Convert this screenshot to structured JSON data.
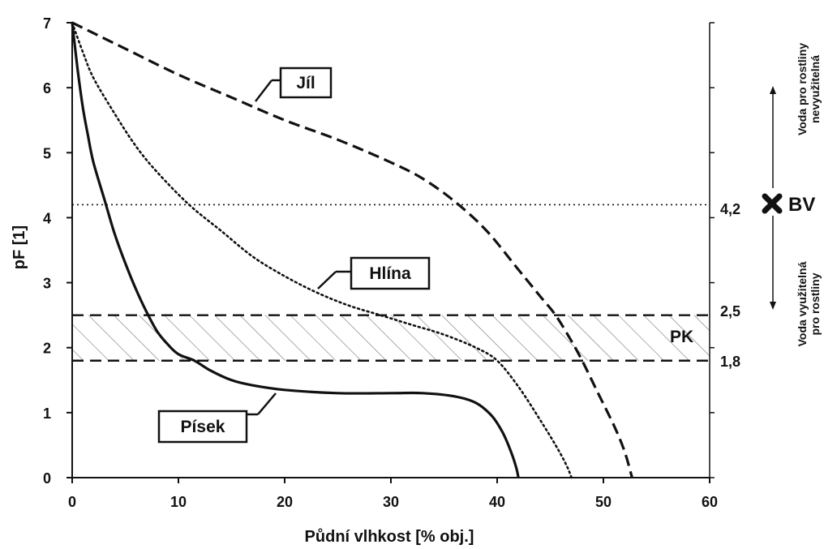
{
  "chart_data": {
    "type": "line",
    "xlabel": "Půdní vlhkost [% obj.]",
    "ylabel": "pF [1]",
    "xlim": [
      0,
      60
    ],
    "ylim": [
      0,
      7
    ],
    "x_ticks": [
      0,
      10,
      20,
      30,
      40,
      50,
      60
    ],
    "y_ticks": [
      0,
      1,
      2,
      3,
      4,
      5,
      6,
      7
    ],
    "grid": false,
    "series": [
      {
        "name": "Jíl",
        "style": "dashed",
        "color": "#111111",
        "points": [
          [
            0,
            7
          ],
          [
            5,
            6.6
          ],
          [
            10,
            6.2
          ],
          [
            15,
            5.85
          ],
          [
            20,
            5.5
          ],
          [
            25,
            5.2
          ],
          [
            30,
            4.85
          ],
          [
            33,
            4.6
          ],
          [
            36,
            4.25
          ],
          [
            39,
            3.8
          ],
          [
            42,
            3.2
          ],
          [
            44,
            2.8
          ],
          [
            45.5,
            2.5
          ],
          [
            47,
            2.1
          ],
          [
            48,
            1.8
          ],
          [
            49.5,
            1.3
          ],
          [
            51,
            0.8
          ],
          [
            52,
            0.4
          ],
          [
            52.7,
            0
          ]
        ]
      },
      {
        "name": "Hlína",
        "style": "dotted",
        "color": "#111111",
        "points": [
          [
            0,
            7
          ],
          [
            1,
            6.55
          ],
          [
            2,
            6.15
          ],
          [
            4,
            5.6
          ],
          [
            6,
            5.1
          ],
          [
            8,
            4.7
          ],
          [
            11,
            4.2
          ],
          [
            14,
            3.8
          ],
          [
            17,
            3.4
          ],
          [
            20,
            3.1
          ],
          [
            23,
            2.85
          ],
          [
            26,
            2.65
          ],
          [
            29,
            2.5
          ],
          [
            32,
            2.35
          ],
          [
            35,
            2.2
          ],
          [
            38,
            2.0
          ],
          [
            40,
            1.8
          ],
          [
            42,
            1.4
          ],
          [
            44,
            0.9
          ],
          [
            45.5,
            0.5
          ],
          [
            46.5,
            0.2
          ],
          [
            47,
            0
          ]
        ]
      },
      {
        "name": "Písek",
        "style": "solid",
        "color": "#111111",
        "points": [
          [
            0,
            7
          ],
          [
            0.5,
            6.3
          ],
          [
            1,
            5.7
          ],
          [
            1.5,
            5.25
          ],
          [
            2,
            4.85
          ],
          [
            3,
            4.3
          ],
          [
            4,
            3.75
          ],
          [
            5,
            3.3
          ],
          [
            6,
            2.9
          ],
          [
            7,
            2.55
          ],
          [
            8,
            2.25
          ],
          [
            9,
            2.05
          ],
          [
            10,
            1.9
          ],
          [
            11.5,
            1.8
          ],
          [
            13,
            1.65
          ],
          [
            15,
            1.5
          ],
          [
            17,
            1.42
          ],
          [
            20,
            1.35
          ],
          [
            25,
            1.3
          ],
          [
            30,
            1.3
          ],
          [
            33,
            1.3
          ],
          [
            36,
            1.25
          ],
          [
            38,
            1.15
          ],
          [
            39.5,
            0.95
          ],
          [
            40.5,
            0.7
          ],
          [
            41.3,
            0.4
          ],
          [
            41.8,
            0.15
          ],
          [
            42,
            0
          ]
        ]
      }
    ],
    "reference_lines": [
      {
        "label": "4,2",
        "y": 4.2,
        "style": "dotted"
      },
      {
        "label": "2,5",
        "y": 2.5,
        "style": "dashed"
      },
      {
        "label": "1,8",
        "y": 1.8,
        "style": "dashed"
      }
    ],
    "hatched_band": {
      "label": "PK",
      "y_from": 1.8,
      "y_to": 2.5
    },
    "wilting_point_label": "BV",
    "side_notes": {
      "above": [
        "Voda pro rostliny",
        "nevyužitelná"
      ],
      "below": [
        "Voda využitelná",
        "pro rostliny"
      ]
    }
  }
}
